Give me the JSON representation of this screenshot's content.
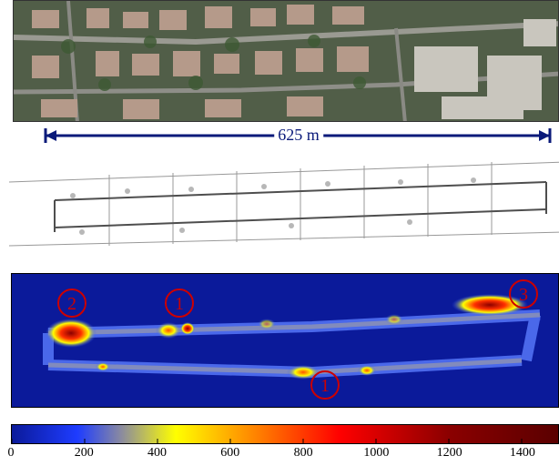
{
  "scale_bar": {
    "label": "625 m",
    "color": "#0a1a7a"
  },
  "heatmap": {
    "markers": [
      {
        "id": "marker-2",
        "label": "2"
      },
      {
        "id": "marker-1-top",
        "label": "1"
      },
      {
        "id": "marker-3",
        "label": "3"
      },
      {
        "id": "marker-1-bottom",
        "label": "1"
      }
    ],
    "background_color": "#0b1a9a"
  },
  "colorbar": {
    "ticks": [
      "0",
      "200",
      "400",
      "600",
      "800",
      "1000",
      "1200",
      "1400"
    ],
    "range": [
      0,
      1500
    ],
    "colormap": [
      "#0b1a9a",
      "#1e3cff",
      "#8a8aa0",
      "#ffff00",
      "#ff8000",
      "#ff0000",
      "#8b0000",
      "#5a0000"
    ]
  }
}
